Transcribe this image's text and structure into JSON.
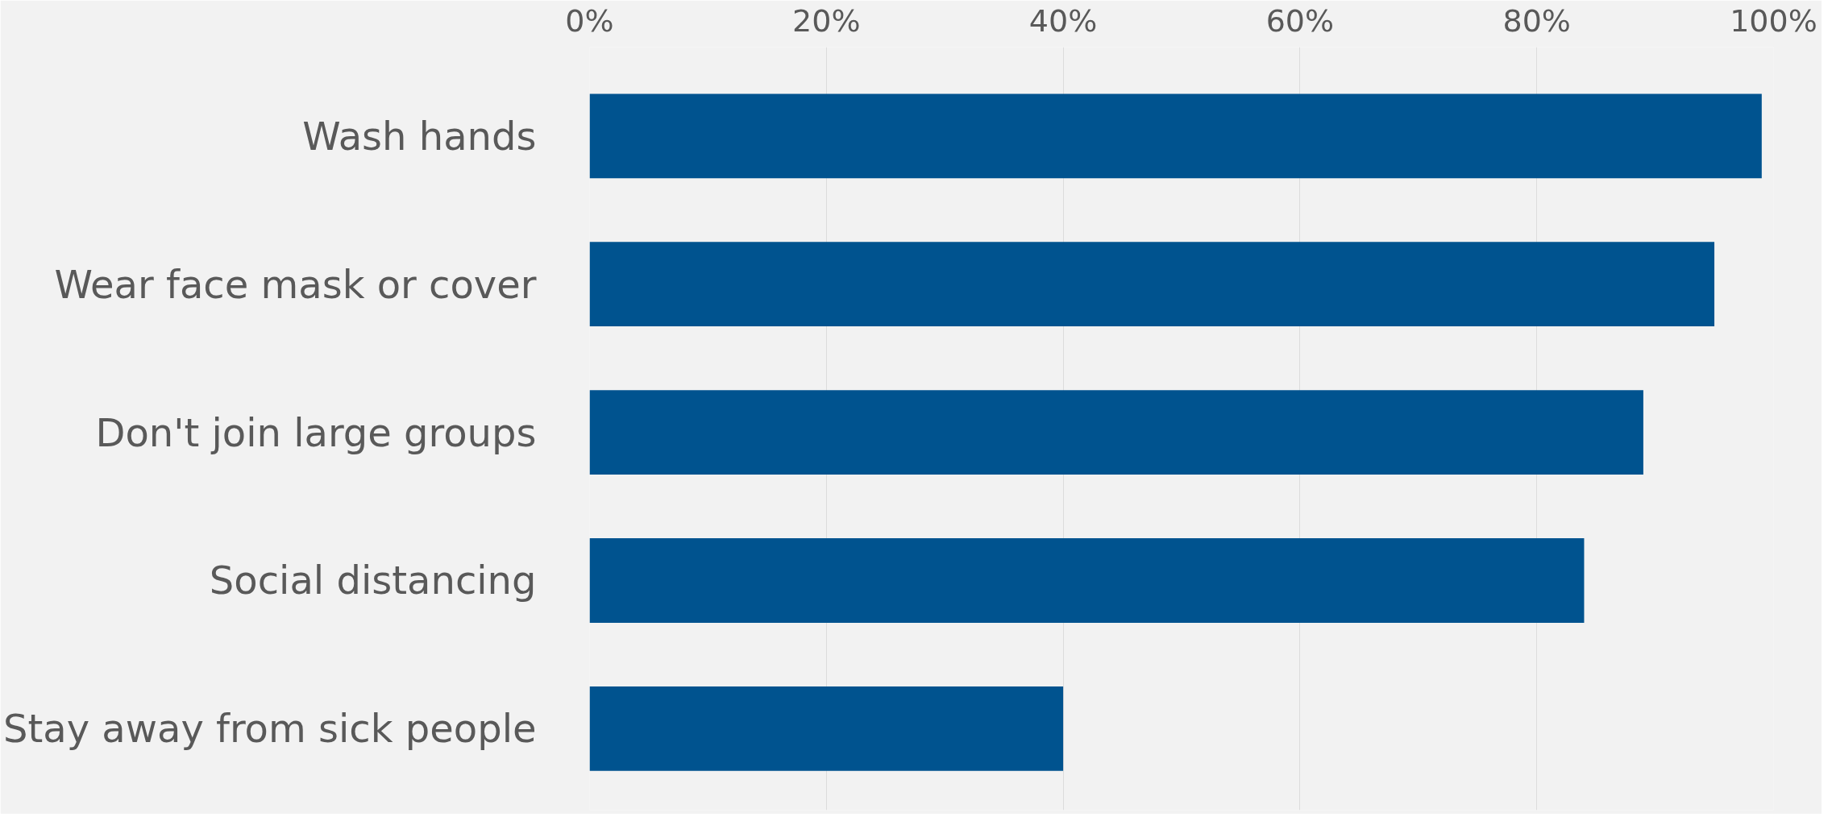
{
  "chart_data": {
    "type": "bar",
    "orientation": "horizontal",
    "categories": [
      "Wash hands",
      "Wear face mask or cover",
      "Don't join large groups",
      "Social distancing",
      "Stay away from sick people"
    ],
    "values": [
      99,
      95,
      89,
      84,
      40
    ],
    "color": "#00538f",
    "xlim": [
      0,
      100
    ],
    "xticks": [
      {
        "value": 0,
        "label": "0%"
      },
      {
        "value": 20,
        "label": "20%"
      },
      {
        "value": 40,
        "label": "40%"
      },
      {
        "value": 60,
        "label": "60%"
      },
      {
        "value": 80,
        "label": "80%"
      },
      {
        "value": 100,
        "label": "100%"
      }
    ],
    "grid": "x"
  }
}
